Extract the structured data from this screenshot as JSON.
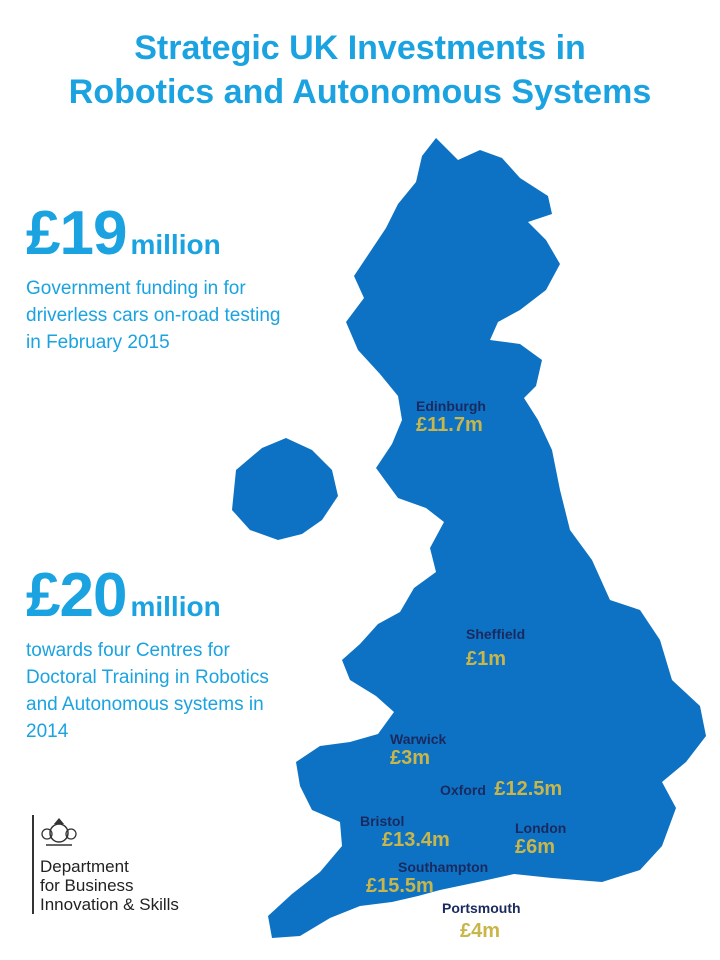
{
  "title": {
    "line1": "Strategic UK Investments in",
    "line2": "Robotics and Autonomous Systems"
  },
  "stats": [
    {
      "amount": "£19",
      "unit": "million",
      "description": "Government funding in for driverless cars on-road testing in February 2015"
    },
    {
      "amount": "£20",
      "unit": "million",
      "description": "towards four Centres for Doctoral Training in Robotics and Autonomous systems in 2014"
    }
  ],
  "cities": [
    {
      "name": "Edinburgh",
      "amount": "£11.7m"
    },
    {
      "name": "Sheffield",
      "amount": "£1m"
    },
    {
      "name": "Warwick",
      "amount": "£3m"
    },
    {
      "name": "Oxford",
      "amount": "£12.5m"
    },
    {
      "name": "Bristol",
      "amount": "£13.4m"
    },
    {
      "name": "London",
      "amount": "£6m"
    },
    {
      "name": "Southampton",
      "amount": "£15.5m"
    },
    {
      "name": "Portsmouth",
      "amount": "£4m"
    }
  ],
  "logo": {
    "line1": "Department",
    "line2": "for Business",
    "line3": "Innovation & Skills"
  },
  "colors": {
    "title": "#1aa3e0",
    "map": "#0d72c4",
    "city_name": "#1a2a5e",
    "amount": "#c9b64a"
  },
  "icons": [
    "crest-icon"
  ]
}
